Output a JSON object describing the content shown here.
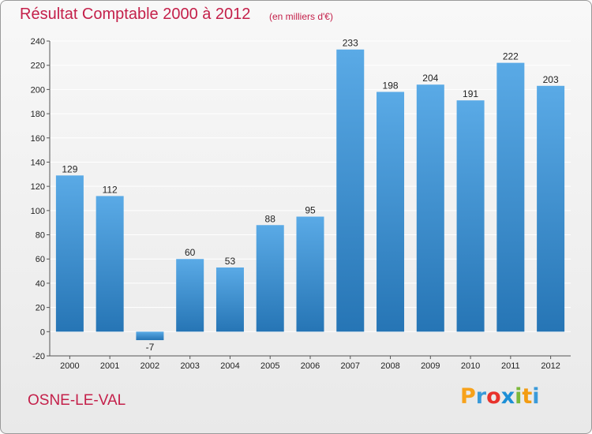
{
  "title": "Résultat Comptable 2000 à 2012",
  "subtitle": "(en milliers d'€)",
  "commune": "OSNE-LE-VAL",
  "logo": {
    "letters": [
      "P",
      "r",
      "o",
      "x",
      "i",
      "t",
      "i"
    ],
    "colors": [
      "#f7a21b",
      "#3a9ad9",
      "#e8322c",
      "#1d8fd6",
      "#7bb83a",
      "#f39c12",
      "#3a9ad9"
    ]
  },
  "colors": {
    "bar_top": "#5aaae6",
    "bar_bottom": "#2675b5",
    "grid": "#ffffff",
    "text": "#222222"
  },
  "chart_data": {
    "type": "bar",
    "categories": [
      "2000",
      "2001",
      "2002",
      "2003",
      "2004",
      "2005",
      "2006",
      "2007",
      "2008",
      "2009",
      "2010",
      "2011",
      "2012"
    ],
    "values": [
      129,
      112,
      -7,
      60,
      53,
      88,
      95,
      233,
      198,
      204,
      191,
      222,
      203
    ],
    "value_labels": [
      "129",
      "112",
      "-7",
      "60",
      "53",
      "88",
      "95",
      "233",
      "198",
      "204",
      "191",
      "222",
      "203"
    ],
    "yticks": [
      -20,
      0,
      20,
      40,
      60,
      80,
      100,
      120,
      140,
      160,
      180,
      200,
      220,
      240
    ],
    "ytick_labels": [
      "-20",
      "0",
      "20",
      "40",
      "60",
      "80",
      "100",
      "120",
      "140",
      "160",
      "180",
      "200",
      "220",
      "240"
    ],
    "ylim": [
      -20,
      240
    ],
    "grid": true,
    "legend": "none"
  }
}
